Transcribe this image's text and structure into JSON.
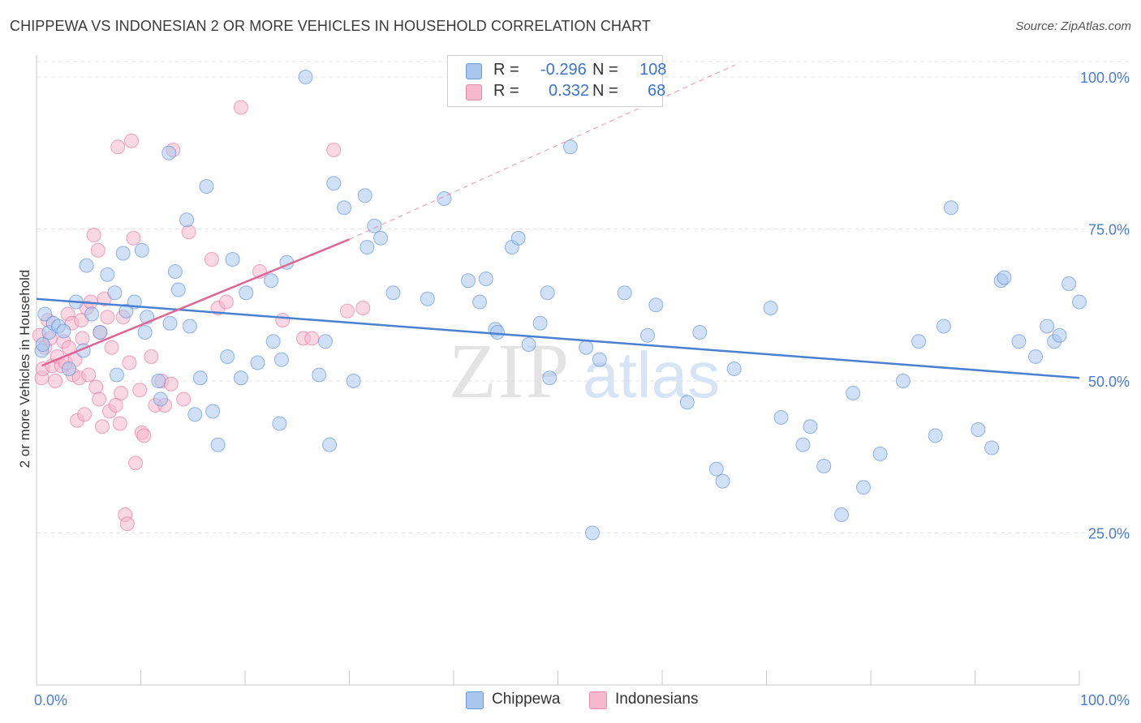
{
  "header": {
    "title": "CHIPPEWA VS INDONESIAN 2 OR MORE VEHICLES IN HOUSEHOLD CORRELATION CHART",
    "source": "Source: ZipAtlas.com"
  },
  "watermark": {
    "zip": "ZIP",
    "atlas": "atlas"
  },
  "legend": {
    "rows": [
      {
        "r_label": "R =",
        "r_value": "-0.296",
        "n_label": "N =",
        "n_value": "108",
        "color": "#a9c6ef"
      },
      {
        "r_label": "R =",
        "r_value": "0.332",
        "n_label": "N =",
        "n_value": "68",
        "color": "#f6b8cc"
      }
    ]
  },
  "bottom_legend": [
    {
      "label": "Chippewa",
      "color": "#a9c6ef"
    },
    {
      "label": "Indonesians",
      "color": "#f6b8cc"
    }
  ],
  "chart_data": {
    "type": "scatter",
    "title": "CHIPPEWA VS INDONESIAN 2 OR MORE VEHICLES IN HOUSEHOLD CORRELATION CHART",
    "xlabel": "",
    "ylabel": "2 or more Vehicles in Household",
    "xlim": [
      0,
      100
    ],
    "ylim": [
      0,
      102
    ],
    "x_tick_labels": [
      "0.0%",
      "100.0%"
    ],
    "y_ticks": [
      25,
      50,
      75,
      100
    ],
    "y_tick_labels": [
      "25.0%",
      "50.0%",
      "75.0%",
      "100.0%"
    ],
    "grid": true,
    "series": [
      {
        "name": "Chippewa",
        "color": "#4a80d0",
        "fill": "#a9c6ef",
        "trend": {
          "x": [
            0,
            100
          ],
          "y": [
            63.5,
            50.5
          ],
          "style": "solid"
        },
        "points": [
          [
            0.5,
            55
          ],
          [
            0.6,
            56
          ],
          [
            0.8,
            61
          ],
          [
            1.2,
            58
          ],
          [
            1.6,
            59.5
          ],
          [
            2.1,
            59
          ],
          [
            2.6,
            58.2
          ],
          [
            3.1,
            52
          ],
          [
            3.8,
            63
          ],
          [
            4.5,
            55
          ],
          [
            4.8,
            69
          ],
          [
            5.3,
            61
          ],
          [
            6.1,
            58
          ],
          [
            6.8,
            67.5
          ],
          [
            7.5,
            64.5
          ],
          [
            7.7,
            51
          ],
          [
            8.3,
            71
          ],
          [
            8.6,
            61.5
          ],
          [
            9.4,
            63
          ],
          [
            10.1,
            71.5
          ],
          [
            10.4,
            58
          ],
          [
            10.6,
            60.5
          ],
          [
            11.7,
            50
          ],
          [
            11.9,
            47
          ],
          [
            12.7,
            87.5
          ],
          [
            12.8,
            59.5
          ],
          [
            13.3,
            68
          ],
          [
            13.6,
            65
          ],
          [
            14.4,
            76.5
          ],
          [
            14.7,
            59
          ],
          [
            15.2,
            44.5
          ],
          [
            15.7,
            50.5
          ],
          [
            16.3,
            82
          ],
          [
            16.9,
            45
          ],
          [
            17.4,
            39.5
          ],
          [
            18.3,
            54
          ],
          [
            18.8,
            70
          ],
          [
            19.6,
            50.5
          ],
          [
            20.1,
            64.5
          ],
          [
            21.2,
            53
          ],
          [
            22.5,
            66.5
          ],
          [
            22.7,
            56.5
          ],
          [
            23.3,
            43
          ],
          [
            23.5,
            53.5
          ],
          [
            24,
            69.5
          ],
          [
            25.8,
            100
          ],
          [
            27.1,
            51
          ],
          [
            27.7,
            56.5
          ],
          [
            28.1,
            39.5
          ],
          [
            28.5,
            82.5
          ],
          [
            29.5,
            78.5
          ],
          [
            30.4,
            50
          ],
          [
            31.5,
            80.5
          ],
          [
            31.7,
            72
          ],
          [
            32.4,
            75.5
          ],
          [
            33,
            73.5
          ],
          [
            34.2,
            64.5
          ],
          [
            37.5,
            63.5
          ],
          [
            39.1,
            80
          ],
          [
            41.4,
            66.5
          ],
          [
            42.5,
            63
          ],
          [
            43.1,
            66.8
          ],
          [
            44,
            58.5
          ],
          [
            44.2,
            58
          ],
          [
            45.6,
            72
          ],
          [
            46.2,
            73.5
          ],
          [
            47.2,
            56
          ],
          [
            48.3,
            59.5
          ],
          [
            49,
            64.5
          ],
          [
            49.2,
            50.5
          ],
          [
            51.2,
            88.5
          ],
          [
            52.7,
            55.5
          ],
          [
            53.3,
            25
          ],
          [
            54,
            53.5
          ],
          [
            56.4,
            64.5
          ],
          [
            58.6,
            57.5
          ],
          [
            59.4,
            62.5
          ],
          [
            62.4,
            46.5
          ],
          [
            63.6,
            58
          ],
          [
            65.2,
            35.5
          ],
          [
            65.8,
            33.5
          ],
          [
            66.9,
            52
          ],
          [
            70.4,
            62
          ],
          [
            71.4,
            44
          ],
          [
            73.5,
            39.5
          ],
          [
            74.2,
            42.5
          ],
          [
            75.5,
            36
          ],
          [
            77.2,
            28
          ],
          [
            78.3,
            48
          ],
          [
            79.3,
            32.5
          ],
          [
            80.9,
            38
          ],
          [
            83.1,
            50
          ],
          [
            84.6,
            56.5
          ],
          [
            86.2,
            41
          ],
          [
            87,
            59
          ],
          [
            87.7,
            78.5
          ],
          [
            90.3,
            42
          ],
          [
            91.6,
            39
          ],
          [
            92.5,
            66.5
          ],
          [
            92.8,
            67
          ],
          [
            94.2,
            56.5
          ],
          [
            95.8,
            54
          ],
          [
            96.9,
            59
          ],
          [
            97.6,
            56.5
          ],
          [
            98.1,
            57.5
          ],
          [
            99,
            66
          ],
          [
            100,
            63
          ]
        ]
      },
      {
        "name": "Indonesians",
        "color": "#e06595",
        "fill": "#f6b8cc",
        "trend": {
          "x": [
            0.5,
            30
          ],
          "y": [
            52.5,
            73.3
          ],
          "style": "solid",
          "extend_to": [
            67,
            102
          ],
          "extend_style": "dashed"
        },
        "points": [
          [
            0.3,
            57.5
          ],
          [
            0.5,
            50.5
          ],
          [
            0.6,
            52
          ],
          [
            0.8,
            55.5
          ],
          [
            1.1,
            60
          ],
          [
            1.3,
            57
          ],
          [
            1.5,
            52.5
          ],
          [
            1.8,
            50
          ],
          [
            2,
            54
          ],
          [
            2.4,
            52.5
          ],
          [
            2.6,
            56.5
          ],
          [
            2.8,
            53
          ],
          [
            3,
            61
          ],
          [
            3.1,
            55.5
          ],
          [
            3.4,
            59.5
          ],
          [
            3.5,
            51
          ],
          [
            3.7,
            53.5
          ],
          [
            3.9,
            43.5
          ],
          [
            4.1,
            50.5
          ],
          [
            4.3,
            60
          ],
          [
            4.4,
            57
          ],
          [
            4.6,
            44.5
          ],
          [
            4.8,
            62
          ],
          [
            5,
            51
          ],
          [
            5.2,
            63
          ],
          [
            5.5,
            74
          ],
          [
            5.7,
            49
          ],
          [
            5.9,
            71.5
          ],
          [
            6,
            47
          ],
          [
            6.1,
            58
          ],
          [
            6.3,
            42.5
          ],
          [
            6.5,
            63.5
          ],
          [
            6.8,
            60.5
          ],
          [
            7,
            45
          ],
          [
            7.2,
            55.5
          ],
          [
            7.6,
            46
          ],
          [
            7.8,
            88.5
          ],
          [
            8,
            43
          ],
          [
            8.1,
            48
          ],
          [
            8.3,
            60.5
          ],
          [
            8.5,
            28
          ],
          [
            8.7,
            26.5
          ],
          [
            8.9,
            53
          ],
          [
            9.1,
            89.5
          ],
          [
            9.3,
            73.5
          ],
          [
            9.5,
            36.5
          ],
          [
            9.9,
            48.5
          ],
          [
            10.1,
            41.5
          ],
          [
            10.3,
            41
          ],
          [
            11,
            54
          ],
          [
            11.4,
            46
          ],
          [
            12,
            50
          ],
          [
            12.3,
            46
          ],
          [
            12.9,
            49.5
          ],
          [
            13.1,
            88
          ],
          [
            14.1,
            47
          ],
          [
            14.6,
            74.5
          ],
          [
            16.8,
            70
          ],
          [
            17.4,
            62
          ],
          [
            18.2,
            63
          ],
          [
            19.6,
            95
          ],
          [
            21.4,
            68
          ],
          [
            23.6,
            60
          ],
          [
            25.6,
            57
          ],
          [
            26.4,
            57
          ],
          [
            28.5,
            88
          ],
          [
            29.8,
            61.5
          ],
          [
            31.3,
            62
          ]
        ]
      }
    ]
  }
}
